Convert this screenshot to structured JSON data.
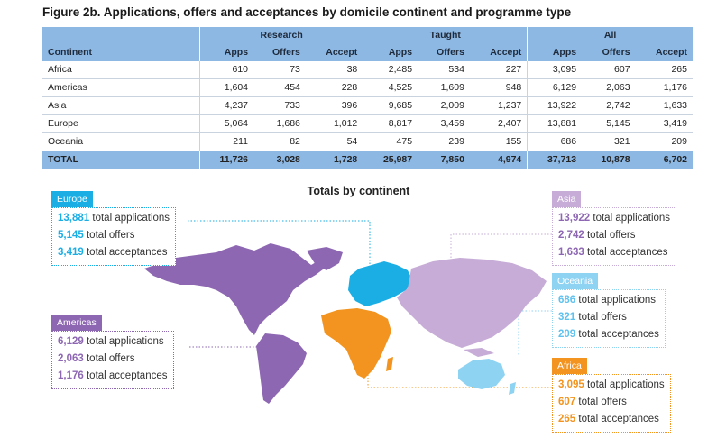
{
  "figure_title": "Figure 2b. Applications, offers and acceptances by domicile continent and programme type",
  "table": {
    "group_headers": [
      "Research",
      "Taught",
      "All"
    ],
    "sub_headers": [
      "Continent",
      "Apps",
      "Offers",
      "Accept",
      "Apps",
      "Offers",
      "Accept",
      "Apps",
      "Offers",
      "Accept"
    ],
    "rows": [
      [
        "Africa",
        "610",
        "73",
        "38",
        "2,485",
        "534",
        "227",
        "3,095",
        "607",
        "265"
      ],
      [
        "Americas",
        "1,604",
        "454",
        "228",
        "4,525",
        "1,609",
        "948",
        "6,129",
        "2,063",
        "1,176"
      ],
      [
        "Asia",
        "4,237",
        "733",
        "396",
        "9,685",
        "2,009",
        "1,237",
        "13,922",
        "2,742",
        "1,633"
      ],
      [
        "Europe",
        "5,064",
        "1,686",
        "1,012",
        "8,817",
        "3,459",
        "2,407",
        "13,881",
        "5,145",
        "3,419"
      ],
      [
        "Oceania",
        "211",
        "82",
        "54",
        "475",
        "239",
        "155",
        "686",
        "321",
        "209"
      ]
    ],
    "total_row": [
      "TOTAL",
      "11,726",
      "3,028",
      "1,728",
      "25,987",
      "7,850",
      "4,974",
      "37,713",
      "10,878",
      "6,702"
    ]
  },
  "map_title": "Totals by continent",
  "chart_data": {
    "type": "table",
    "title": "Figure 2b. Applications, offers and acceptances by domicile continent and programme type",
    "categories": [
      "Africa",
      "Americas",
      "Asia",
      "Europe",
      "Oceania"
    ],
    "series": [
      {
        "name": "Research Apps",
        "values": [
          610,
          1604,
          4237,
          5064,
          211
        ]
      },
      {
        "name": "Research Offers",
        "values": [
          73,
          454,
          733,
          1686,
          82
        ]
      },
      {
        "name": "Research Accept",
        "values": [
          38,
          228,
          396,
          1012,
          54
        ]
      },
      {
        "name": "Taught Apps",
        "values": [
          2485,
          4525,
          9685,
          8817,
          475
        ]
      },
      {
        "name": "Taught Offers",
        "values": [
          534,
          1609,
          2009,
          3459,
          239
        ]
      },
      {
        "name": "Taught Accept",
        "values": [
          227,
          948,
          1237,
          2407,
          155
        ]
      },
      {
        "name": "All Apps",
        "values": [
          3095,
          6129,
          13922,
          13881,
          686
        ]
      },
      {
        "name": "All Offers",
        "values": [
          607,
          2063,
          2742,
          5145,
          321
        ]
      },
      {
        "name": "All Accept",
        "values": [
          265,
          1176,
          1633,
          3419,
          209
        ]
      }
    ],
    "totals": {
      "Research": [
        11726,
        3028,
        1728
      ],
      "Taught": [
        25987,
        7850,
        4974
      ],
      "All": [
        37713,
        10878,
        6702
      ]
    }
  },
  "callouts": {
    "europe": {
      "name": "Europe",
      "color": "#1aaee5",
      "apps": "13,881",
      "offers": "5,145",
      "accept": "3,419"
    },
    "asia": {
      "name": "Asia",
      "color": "#c6acd6",
      "apps": "13,922",
      "offers": "2,742",
      "accept": "1,633"
    },
    "oceania": {
      "name": "Oceania",
      "color": "#8fd3f3",
      "apps": "686",
      "offers": "321",
      "accept": "209"
    },
    "americas": {
      "name": "Americas",
      "color": "#8d67b2",
      "apps": "6,129",
      "offers": "2,063",
      "accept": "1,176"
    },
    "africa": {
      "name": "Africa",
      "color": "#f2941f",
      "apps": "3,095",
      "offers": "607",
      "accept": "265"
    }
  },
  "labels": {
    "apps_suffix": "total applications",
    "offers_suffix": "total offers",
    "accept_suffix": "total acceptances"
  }
}
